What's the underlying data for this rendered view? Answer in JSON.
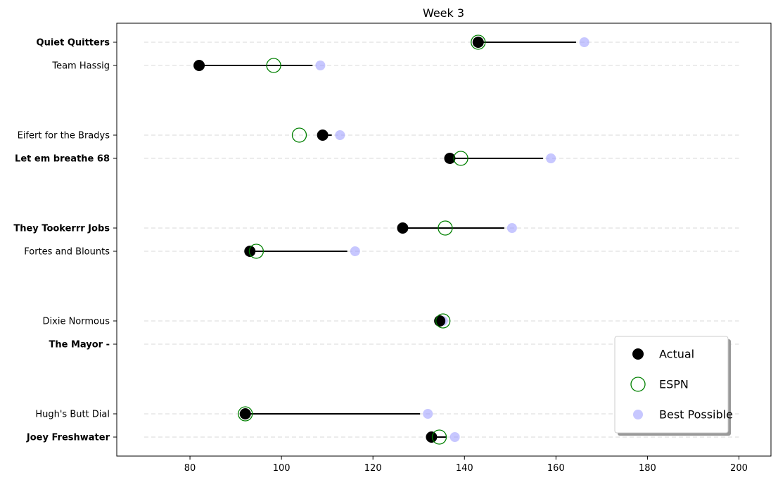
{
  "chart_data": {
    "type": "dot-range",
    "title": "Week 3",
    "xlim": [
      64,
      207
    ],
    "xticks": [
      80,
      100,
      120,
      140,
      160,
      180,
      200
    ],
    "grid": "dashed horizontal guides per team",
    "legend_placement": "lower right",
    "legend": [
      {
        "key": "actual",
        "label": "Actual"
      },
      {
        "key": "espn",
        "label": "ESPN"
      },
      {
        "key": "best",
        "label": "Best Possible"
      }
    ],
    "colors": {
      "actual": "#000000",
      "espn": "#008000",
      "best": "#9999ff",
      "guide": "#d9d9d9"
    },
    "teams": [
      {
        "name": "Quiet Quitters",
        "bold": true,
        "actual": 143.0,
        "espn": 143.0,
        "best": 166.2,
        "line_end": 164.4
      },
      {
        "name": "Team Hassig",
        "bold": false,
        "actual": 82.0,
        "espn": 98.3,
        "best": 108.5,
        "line_end": 106.8
      },
      {
        "name": "Eifert for the Bradys",
        "bold": false,
        "actual": 109.0,
        "espn": 103.9,
        "best": 112.8,
        "line_end": 111.0
      },
      {
        "name": "Let em breathe 68",
        "bold": true,
        "actual": 136.8,
        "espn": 139.2,
        "best": 158.9,
        "line_end": 157.2
      },
      {
        "name": "They Tookerrr Jobs",
        "bold": true,
        "actual": 126.5,
        "espn": 135.8,
        "best": 150.4,
        "line_end": 148.7
      },
      {
        "name": "Fortes and Blounts",
        "bold": false,
        "actual": 93.1,
        "espn": 94.5,
        "best": 116.1,
        "line_end": 114.4
      },
      {
        "name": "Dixie Normous",
        "bold": false,
        "actual": 134.6,
        "espn": 135.3,
        "best": 135.3,
        "line_end": null
      },
      {
        "name": "The Mayor -",
        "bold": true,
        "actual": null,
        "espn": null,
        "best": null,
        "line_end": null
      },
      {
        "name": "Hugh's Butt Dial",
        "bold": false,
        "actual": 92.1,
        "espn": 92.1,
        "best": 132.0,
        "line_end": 130.3
      },
      {
        "name": "Joey Freshwater",
        "bold": true,
        "actual": 132.8,
        "espn": 134.5,
        "best": 137.9,
        "line_end": 136.1
      }
    ]
  }
}
